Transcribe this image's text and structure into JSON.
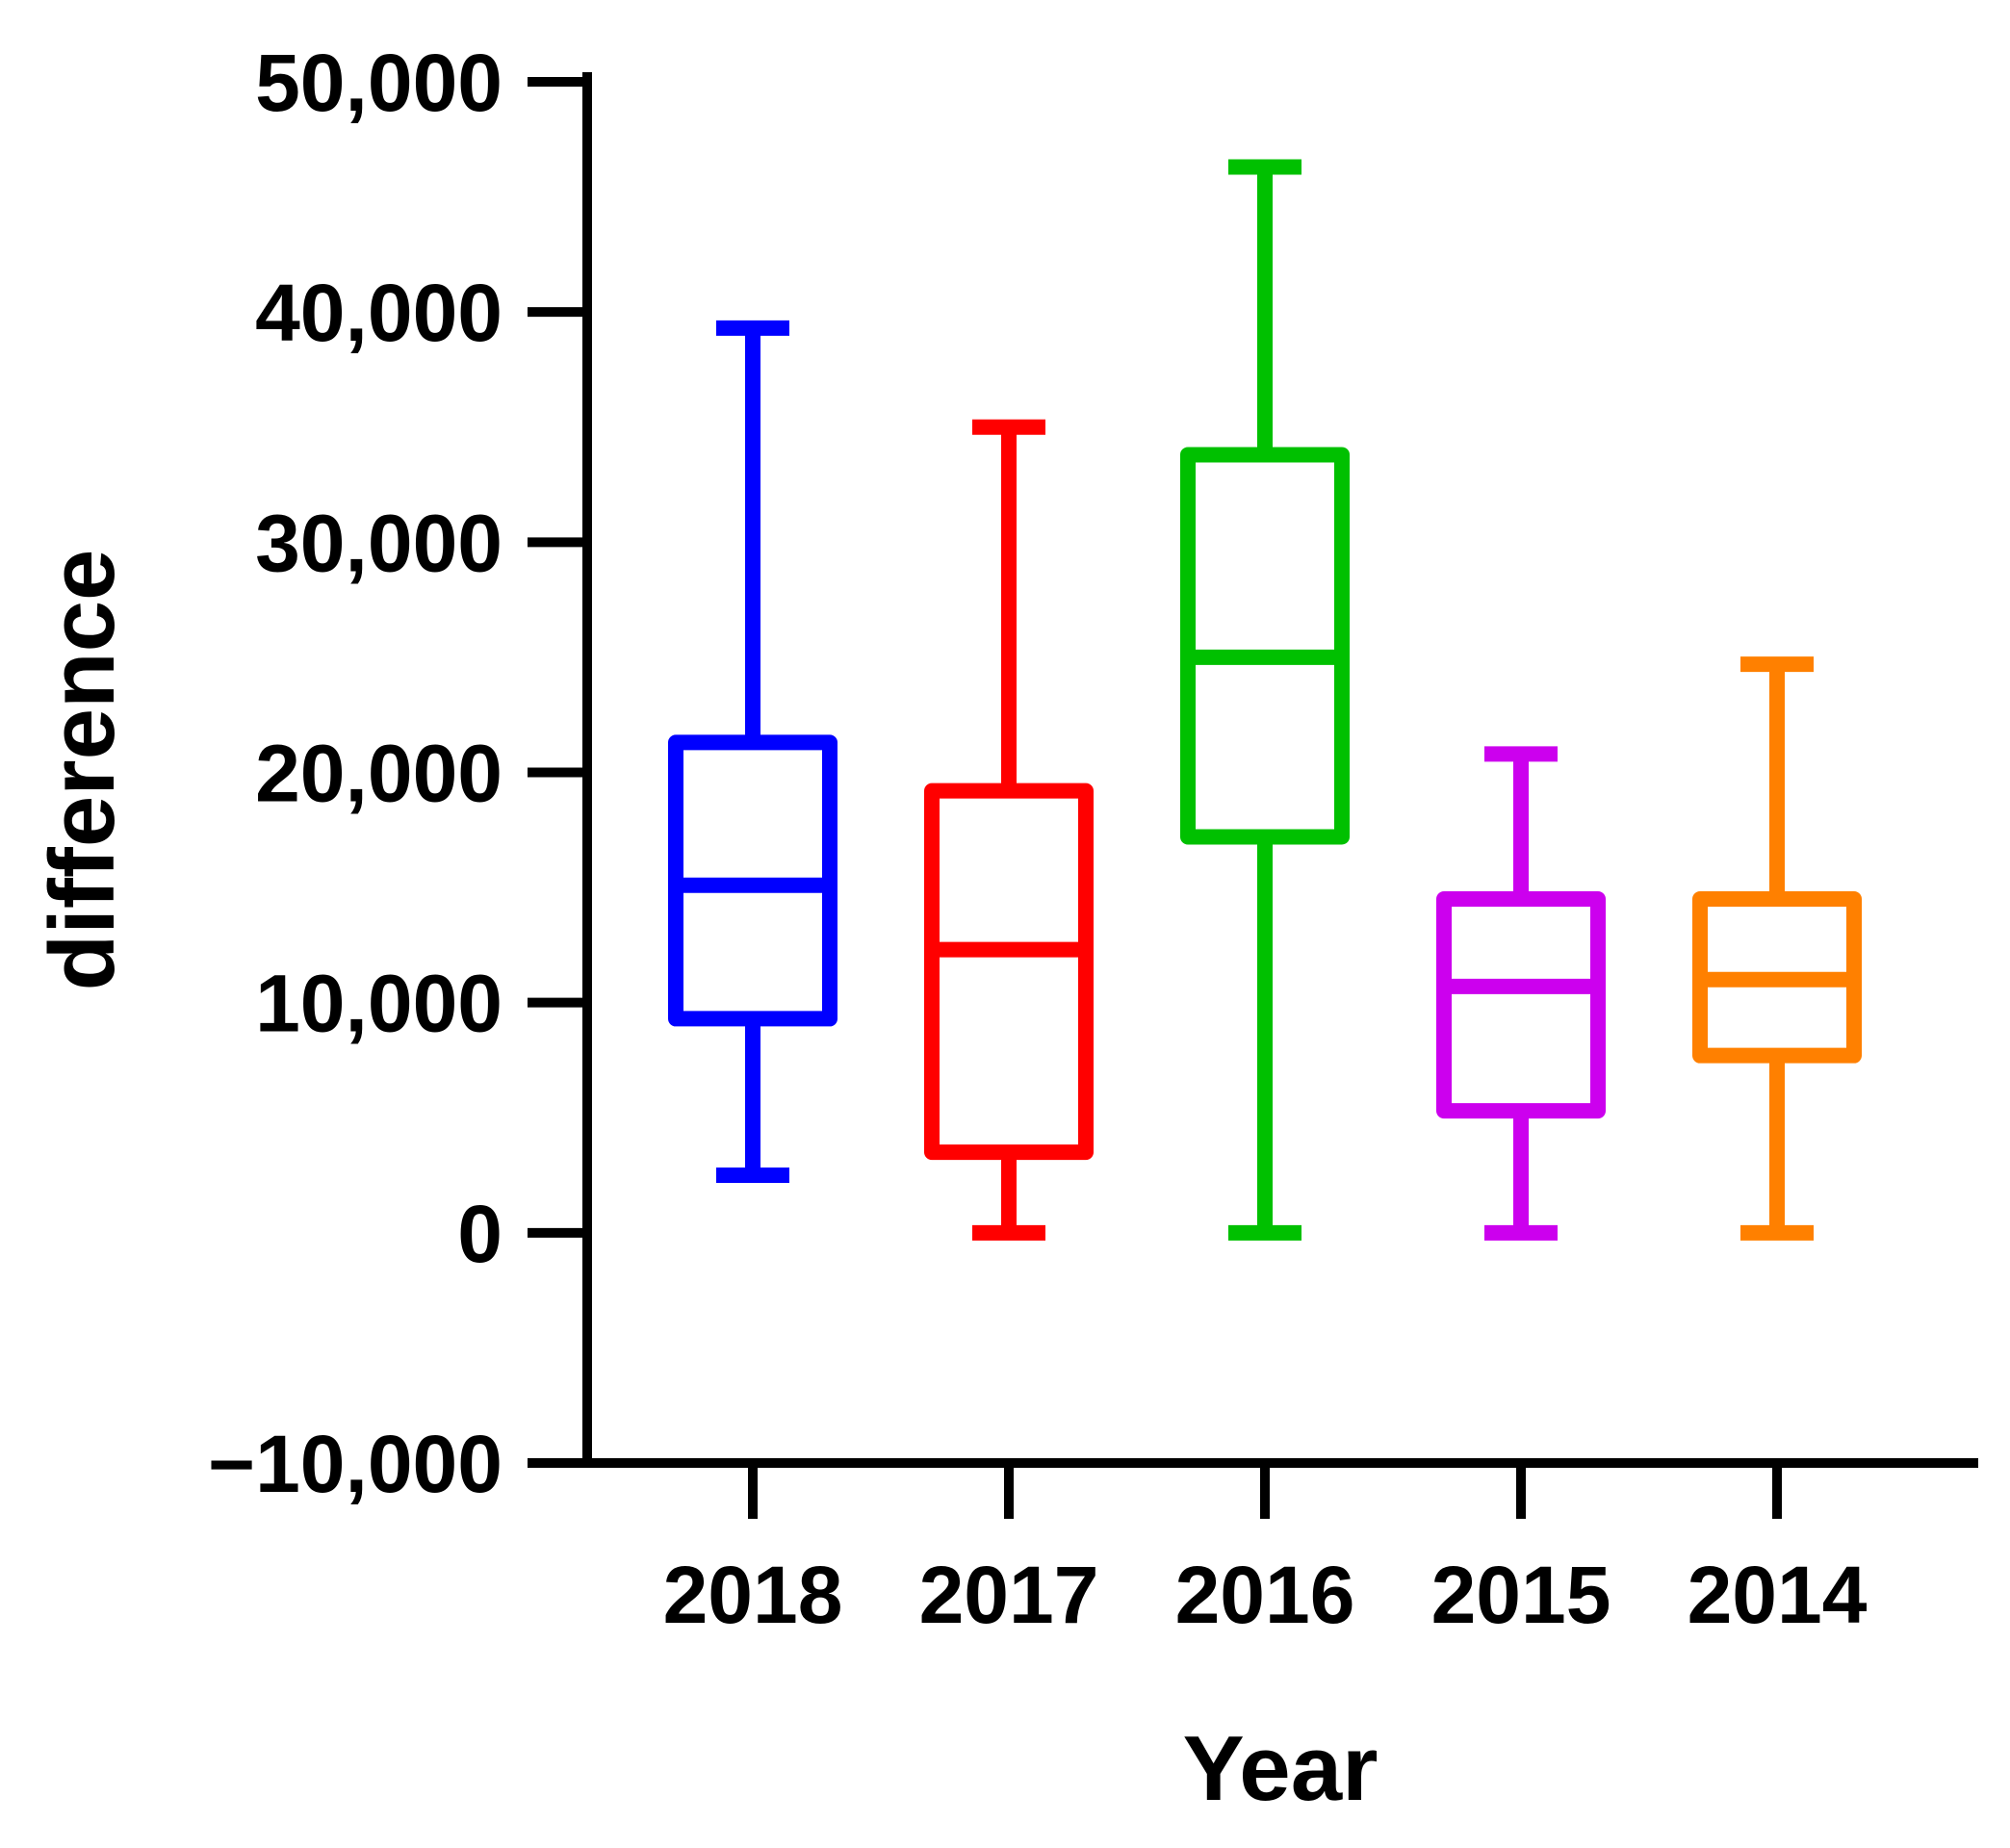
{
  "chart_data": {
    "type": "box",
    "title": "",
    "xlabel": "Year",
    "ylabel": "difference",
    "ylim": [
      -10000,
      50000
    ],
    "yticks": [
      50000,
      40000,
      30000,
      20000,
      10000,
      0,
      -10000
    ],
    "ytick_labels": [
      "50,000",
      "40,000",
      "30,000",
      "20,000",
      "10,000",
      "0",
      "−10,000"
    ],
    "grid": false,
    "legend": "none",
    "categories": [
      "2018",
      "2017",
      "2016",
      "2015",
      "2014"
    ],
    "boxes": [
      {
        "category": "2018",
        "min": 2500,
        "q1": 9300,
        "median": 15100,
        "q3": 21300,
        "max": 39300,
        "color": "#0000ff"
      },
      {
        "category": "2017",
        "min": 0,
        "q1": 3500,
        "median": 12300,
        "q3": 19200,
        "max": 35000,
        "color": "#ff0000"
      },
      {
        "category": "2016",
        "min": 0,
        "q1": 17200,
        "median": 25000,
        "q3": 33800,
        "max": 46300,
        "color": "#00c000"
      },
      {
        "category": "2015",
        "min": 0,
        "q1": 5300,
        "median": 10700,
        "q3": 14500,
        "max": 20800,
        "color": "#cc00ee"
      },
      {
        "category": "2014",
        "min": 0,
        "q1": 7700,
        "median": 11000,
        "q3": 14500,
        "max": 24700,
        "color": "#ff8000"
      }
    ]
  }
}
